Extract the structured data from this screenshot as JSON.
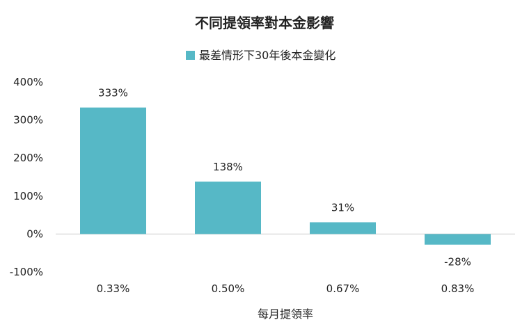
{
  "chart_data": {
    "type": "bar",
    "title": "不同提領率對本金影響",
    "xlabel": "每月提領率",
    "ylabel": "",
    "categories": [
      "0.33%",
      "0.50%",
      "0.67%",
      "0.83%"
    ],
    "series": [
      {
        "name": "最差情形下30年後本金變化",
        "values": [
          333,
          138,
          31,
          -28
        ],
        "labels": [
          "333%",
          "138%",
          "31%",
          "-28%"
        ],
        "color": "#56b8c6"
      }
    ],
    "ylim": [
      -100,
      400
    ],
    "yticks": [
      400,
      300,
      200,
      100,
      0,
      -100
    ],
    "ytick_labels": [
      "400%",
      "300%",
      "200%",
      "100%",
      "0%",
      "-100%"
    ],
    "legend_position": "top-center",
    "grid": false,
    "zero_line_color": "#c8c8c8"
  }
}
